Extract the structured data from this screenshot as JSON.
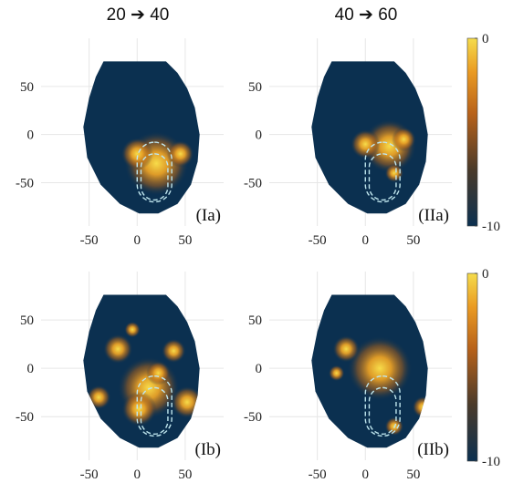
{
  "column_titles": [
    "20 ➔ 40",
    "40 ➔ 60"
  ],
  "chart_data": [
    {
      "type": "heatmap",
      "label": "(Ia)",
      "xlim": [
        -100,
        90
      ],
      "ylim": [
        -95,
        100
      ],
      "xticks": [
        -50,
        0,
        50
      ],
      "yticks": [
        -50,
        0,
        50
      ],
      "grid": true
    },
    {
      "type": "heatmap",
      "label": "(IIa)",
      "xlim": [
        -100,
        90
      ],
      "ylim": [
        -95,
        100
      ],
      "xticks": [
        -50,
        0,
        50
      ],
      "yticks": [
        -50,
        0,
        50
      ],
      "grid": true
    },
    {
      "type": "heatmap",
      "label": "(Ib)",
      "xlim": [
        -100,
        90
      ],
      "ylim": [
        -95,
        100
      ],
      "xticks": [
        -50,
        0,
        50
      ],
      "yticks": [
        -50,
        0,
        50
      ],
      "grid": true
    },
    {
      "type": "heatmap",
      "label": "(IIb)",
      "xlim": [
        -100,
        90
      ],
      "ylim": [
        -95,
        100
      ],
      "xticks": [
        -50,
        0,
        50
      ],
      "yticks": [
        -50,
        0,
        50
      ],
      "grid": true
    }
  ],
  "colorbars": [
    {
      "clim": [
        -10,
        0
      ],
      "ticks": [
        -10,
        0
      ]
    },
    {
      "clim": [
        -10,
        0
      ],
      "ticks": [
        -10,
        0
      ]
    }
  ]
}
